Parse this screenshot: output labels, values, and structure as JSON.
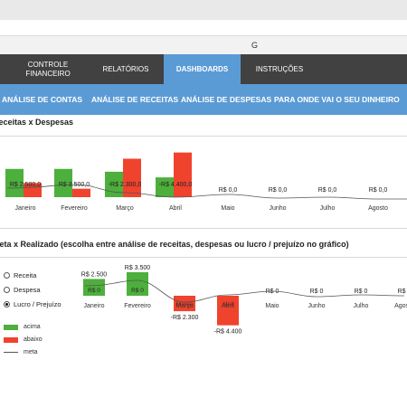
{
  "formula_bar": {
    "column_letter": "G"
  },
  "tabs": [
    {
      "label": "CONTROLE\nFINANCEIRO",
      "active": false
    },
    {
      "label": "RELATÓRIOS",
      "active": false
    },
    {
      "label": "DASHBOARDS",
      "active": true
    },
    {
      "label": "INSTRUÇÕES",
      "active": false
    }
  ],
  "subtabs": [
    "ANÁLISE DE CONTAS",
    "ANÁLISE DE RECEITAS",
    "ANÁLISE DE DESPESAS",
    "PARA ONDE VAI O SEU DINHEIRO"
  ],
  "colors": {
    "receita": "#4daf3c",
    "despesa": "#f0432e",
    "tab_active": "#5b9bd5",
    "tabbar": "#414141"
  },
  "chart1": {
    "title": "Receitas x Despesas",
    "chart_data": {
      "type": "bar",
      "categories": [
        "Janeiro",
        "Fevereiro",
        "Março",
        "Abril",
        "Maio",
        "Junho",
        "Julho",
        "Agosto"
      ],
      "series": [
        {
          "values": [
            5000,
            5000,
            4500,
            3500,
            0,
            0,
            0,
            0
          ]
        },
        {
          "values": [
            2500,
            1500,
            6800,
            7900,
            0,
            0,
            0,
            0
          ]
        }
      ],
      "data_labels": [
        "R$ 2.500,0",
        "R$ 3.500,0",
        "-R$ 2.300,0",
        "-R$ 4.400,0",
        "R$ 0,0",
        "R$ 0,0",
        "R$ 0,0",
        "R$ 0,0"
      ]
    }
  },
  "chart2": {
    "title": "Meta x Realizado (escolha entre análise de receitas, despesas ou lucro / prejuízo no gráfico)",
    "options": [
      {
        "label": "Receita",
        "selected": false
      },
      {
        "label": "Despesa",
        "selected": false
      },
      {
        "label": "Lucro / Prejuízo",
        "selected": true
      }
    ],
    "legend": [
      {
        "label": "acima",
        "color": "#4daf3c"
      },
      {
        "label": "abaixo",
        "color": "#f0432e"
      },
      {
        "label": "meta",
        "color": "#555555"
      }
    ],
    "chart_data": {
      "type": "bar",
      "categories": [
        "Janeiro",
        "Fevereiro",
        "Março",
        "Abril",
        "Maio",
        "Junho",
        "Julho",
        "Agosto"
      ],
      "values": [
        2500,
        3500,
        -2300,
        -4400,
        0,
        0,
        0,
        0
      ],
      "data_labels": [
        "R$ 2.500",
        "R$ 3.500",
        "-R$ 2.300",
        "-R$ 4.400",
        "R$ 0",
        "R$ 0",
        "R$ 0",
        "R$ 0"
      ],
      "inner_labels": [
        "R$ 0",
        "R$ 0",
        "Março",
        "Abril",
        "",
        "",
        "",
        ""
      ]
    }
  }
}
